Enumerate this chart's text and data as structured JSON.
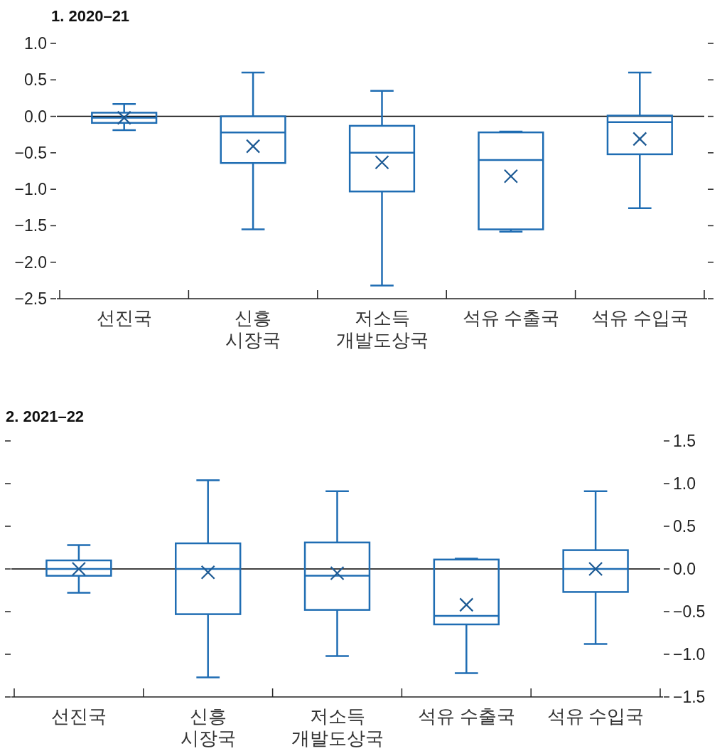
{
  "chart_data": [
    {
      "type": "box",
      "title": "1. 2020–21",
      "categories": [
        "선진국",
        "신흥\n시장국",
        "저소득\n개발도상국",
        "석유 수출국",
        "석유 수입국"
      ],
      "marker": "cross",
      "ylim": [
        -2.5,
        1.0
      ],
      "yticks": [
        {
          "value": 1.0,
          "label": "1.0"
        },
        {
          "value": 0.5,
          "label": "0.5"
        },
        {
          "value": 0,
          "label": "0.0"
        },
        {
          "value": -0.5,
          "label": "−0.5"
        },
        {
          "value": -1.0,
          "label": "−1.0"
        },
        {
          "value": -1.5,
          "label": "−1.5"
        },
        {
          "value": -2.0,
          "label": "−2.0"
        },
        {
          "value": -2.5,
          "label": "−2.5"
        }
      ],
      "ref_lines": [
        {
          "axis": "y",
          "value": 0,
          "color": "#000000"
        }
      ],
      "series": [
        {
          "color": "#1f6db3",
          "boxes": [
            {
              "low": -0.19,
              "q1": -0.09,
              "median": -0.02,
              "q3": 0.05,
              "high": 0.17,
              "mean": -0.02
            },
            {
              "low": -1.55,
              "q1": -0.64,
              "median": -0.22,
              "q3": 0.0,
              "high": 0.6,
              "mean": -0.41
            },
            {
              "low": -2.32,
              "q1": -1.03,
              "median": -0.5,
              "q3": -0.13,
              "high": 0.35,
              "mean": -0.63
            },
            {
              "low": -1.58,
              "q1": -1.55,
              "median": -0.6,
              "q3": -0.22,
              "high": -0.21,
              "mean": -0.82
            },
            {
              "low": -1.26,
              "q1": -0.52,
              "median": -0.08,
              "q3": 0.01,
              "high": 0.6,
              "mean": -0.31
            }
          ]
        }
      ]
    },
    {
      "type": "box",
      "title": "2. 2021–22",
      "categories": [
        "선진국",
        "신흥\n시장국",
        "저소득\n개발도상국",
        "석유 수출국",
        "석유 수입국"
      ],
      "marker": "cross",
      "y2lim": [
        -1.5,
        1.5
      ],
      "y2ticks": [
        {
          "value": 1.5,
          "label": "1.5"
        },
        {
          "value": 1.0,
          "label": "1.0"
        },
        {
          "value": 0.5,
          "label": "0.5"
        },
        {
          "value": 0,
          "label": "0.0"
        },
        {
          "value": -0.5,
          "label": "−0.5"
        },
        {
          "value": -1.0,
          "label": "−1.0"
        },
        {
          "value": -1.5,
          "label": "−1.5"
        }
      ],
      "ref_lines": [
        {
          "axis": "y2",
          "value": 0,
          "color": "#000000"
        }
      ],
      "series": [
        {
          "color": "#1f6db3",
          "axis": "y2",
          "boxes": [
            {
              "low": -0.28,
              "q1": -0.08,
              "median": 0.0,
              "q3": 0.1,
              "high": 0.28,
              "mean": 0.0
            },
            {
              "low": -1.27,
              "q1": -0.53,
              "median": 0.0,
              "q3": 0.3,
              "high": 1.04,
              "mean": -0.04
            },
            {
              "low": -1.02,
              "q1": -0.48,
              "median": -0.08,
              "q3": 0.31,
              "high": 0.91,
              "mean": -0.05
            },
            {
              "low": -1.22,
              "q1": -0.65,
              "median": -0.55,
              "q3": 0.11,
              "high": 0.12,
              "mean": -0.42
            },
            {
              "low": -0.88,
              "q1": -0.27,
              "median": 0.0,
              "q3": 0.22,
              "high": 0.91,
              "mean": 0.0
            }
          ]
        }
      ]
    }
  ]
}
